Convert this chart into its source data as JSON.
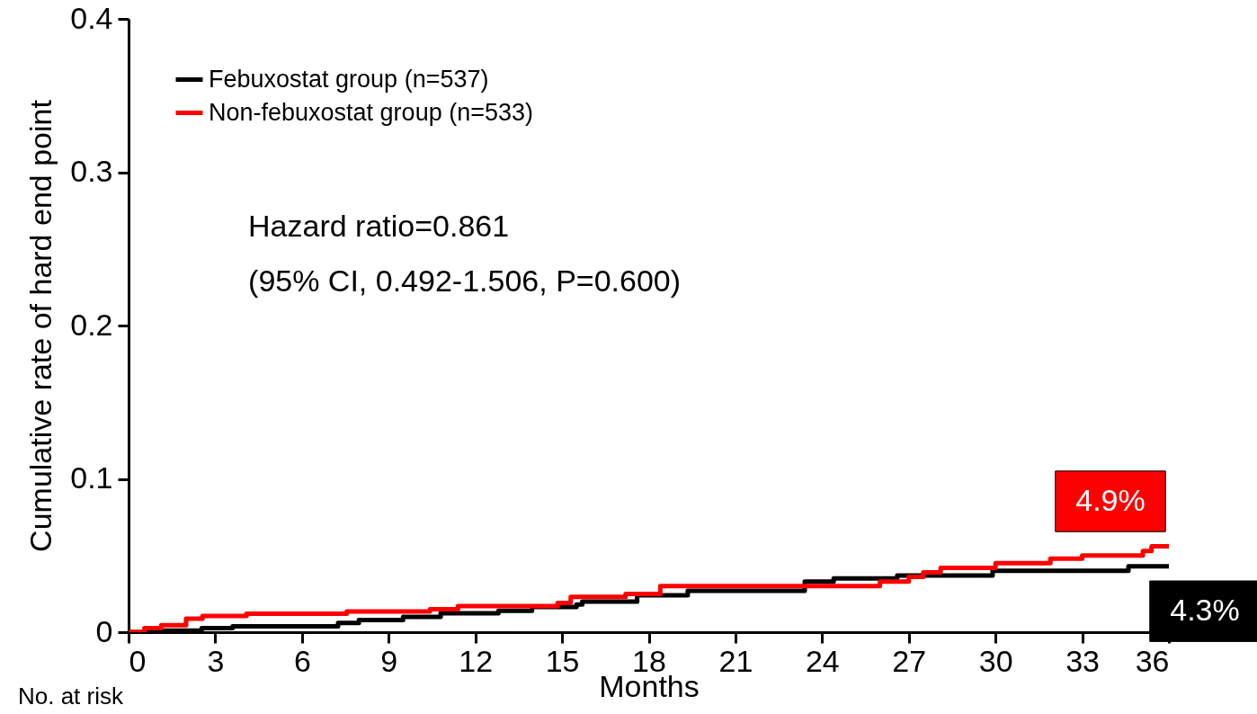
{
  "chart_data": {
    "type": "step",
    "xlabel": "Months",
    "ylabel": "Cumulative rate of hard end point",
    "xlim": [
      0,
      36
    ],
    "xticks": [
      0,
      3,
      6,
      9,
      12,
      15,
      18,
      21,
      24,
      27,
      30,
      33,
      36
    ],
    "ylim": [
      0,
      0.4
    ],
    "yticks": [
      0,
      0.1,
      0.2,
      0.3,
      0.4
    ],
    "legend": "top left",
    "grid": false,
    "series": [
      {
        "name": "Febuxostat group (n=537)",
        "color": "#000000",
        "x": [
          0,
          0.67,
          2.53,
          3.6,
          7.25,
          7.97,
          9.5,
          10.8,
          12.8,
          13.96,
          15.5,
          15.7,
          17.6,
          19.35,
          23.4,
          24.4,
          26.6,
          29.9,
          34.6,
          36
        ],
        "values": [
          0,
          0.001,
          0.0026,
          0.0038,
          0.006,
          0.0079,
          0.01,
          0.0123,
          0.014,
          0.0164,
          0.018,
          0.02,
          0.024,
          0.027,
          0.033,
          0.035,
          0.037,
          0.04,
          0.043,
          0.043
        ]
      },
      {
        "name": "Non-febuxostat group (n=533)",
        "color": "#ff0000",
        "x": [
          0,
          0.55,
          1.13,
          1.99,
          2.56,
          4.08,
          7.55,
          10.43,
          11.4,
          14.85,
          15.3,
          17.2,
          18.4,
          26.0,
          27.0,
          27.5,
          28.1,
          30.0,
          31.9,
          33.0,
          35.1,
          35.4,
          36
        ],
        "values": [
          0,
          0.0026,
          0.0045,
          0.0088,
          0.0106,
          0.012,
          0.0135,
          0.015,
          0.017,
          0.019,
          0.023,
          0.025,
          0.03,
          0.033,
          0.036,
          0.039,
          0.042,
          0.045,
          0.048,
          0.05,
          0.053,
          0.056,
          0.056
        ]
      }
    ],
    "annotations": [
      "Hazard ratio=0.861",
      "(95% CI, 0.492-1.506, P=0.600)",
      "No. at risk",
      {
        "text": "4.9%",
        "x": 36,
        "y": 0.056
      },
      {
        "text": "4.3%",
        "x": 36,
        "y": 0.043
      }
    ]
  }
}
